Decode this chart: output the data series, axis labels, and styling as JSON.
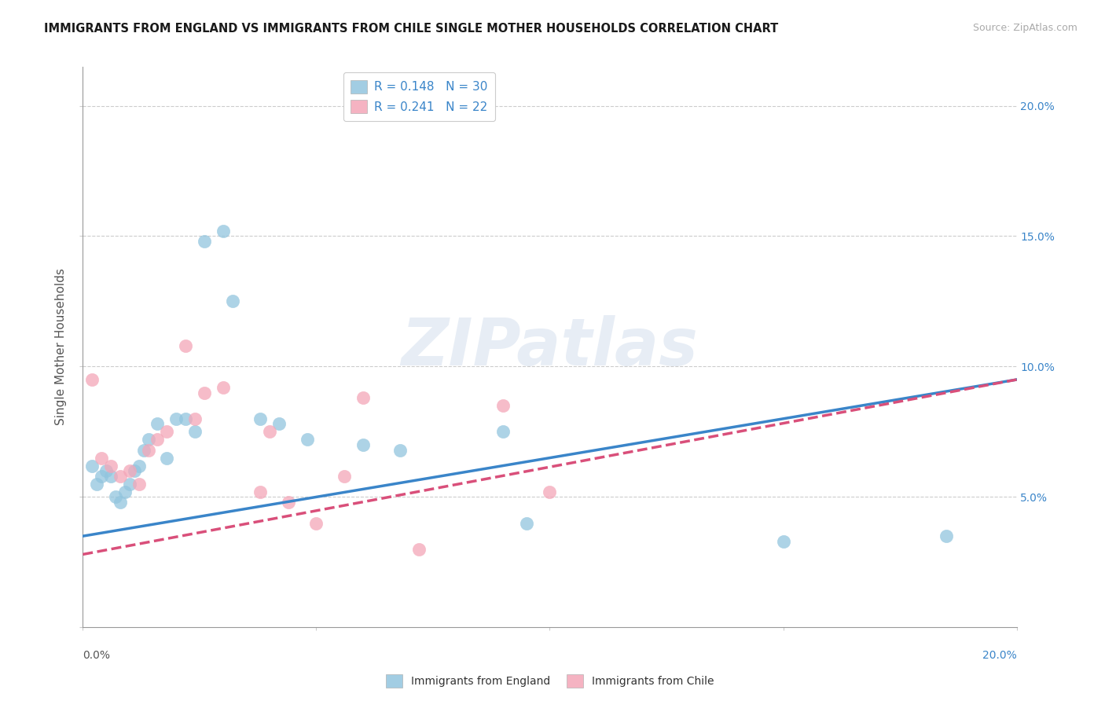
{
  "title": "IMMIGRANTS FROM ENGLAND VS IMMIGRANTS FROM CHILE SINGLE MOTHER HOUSEHOLDS CORRELATION CHART",
  "source": "Source: ZipAtlas.com",
  "ylabel": "Single Mother Households",
  "legend_england_r": "R = 0.148",
  "legend_england_n": "N = 30",
  "legend_chile_r": "R = 0.241",
  "legend_chile_n": "N = 22",
  "england_color": "#92c5de",
  "chile_color": "#f4a6b8",
  "england_line_color": "#3a85c9",
  "chile_line_color": "#d94f7a",
  "england_x": [
    0.002,
    0.003,
    0.004,
    0.005,
    0.006,
    0.007,
    0.008,
    0.009,
    0.01,
    0.011,
    0.012,
    0.013,
    0.014,
    0.016,
    0.018,
    0.02,
    0.022,
    0.024,
    0.026,
    0.03,
    0.032,
    0.038,
    0.042,
    0.048,
    0.06,
    0.068,
    0.09,
    0.095,
    0.15,
    0.185
  ],
  "england_y": [
    0.062,
    0.055,
    0.058,
    0.06,
    0.058,
    0.05,
    0.048,
    0.052,
    0.055,
    0.06,
    0.062,
    0.068,
    0.072,
    0.078,
    0.065,
    0.08,
    0.08,
    0.075,
    0.148,
    0.152,
    0.125,
    0.08,
    0.078,
    0.072,
    0.07,
    0.068,
    0.075,
    0.04,
    0.033,
    0.035
  ],
  "chile_x": [
    0.002,
    0.004,
    0.006,
    0.008,
    0.01,
    0.012,
    0.014,
    0.016,
    0.018,
    0.022,
    0.024,
    0.026,
    0.03,
    0.038,
    0.04,
    0.044,
    0.05,
    0.056,
    0.06,
    0.072,
    0.09,
    0.1
  ],
  "chile_y": [
    0.095,
    0.065,
    0.062,
    0.058,
    0.06,
    0.055,
    0.068,
    0.072,
    0.075,
    0.108,
    0.08,
    0.09,
    0.092,
    0.052,
    0.075,
    0.048,
    0.04,
    0.058,
    0.088,
    0.03,
    0.085,
    0.052
  ],
  "xlim": [
    0.0,
    0.2
  ],
  "ylim": [
    0.0,
    0.215
  ],
  "watermark": "ZIPatlas"
}
